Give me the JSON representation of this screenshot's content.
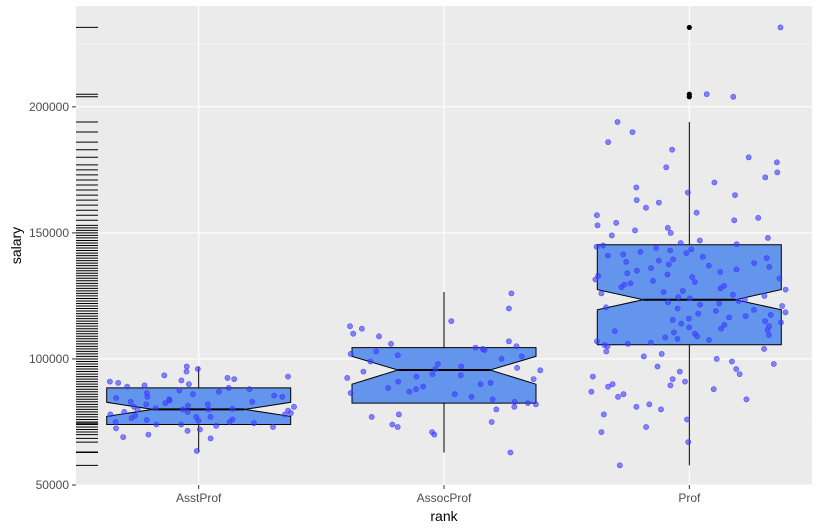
{
  "chart_data": {
    "type": "box",
    "title": "",
    "xlabel": "rank",
    "ylabel": "salary",
    "categories": [
      "AsstProf",
      "AssocProf",
      "Prof"
    ],
    "ylim": [
      50000,
      240000
    ],
    "y_ticks": [
      50000,
      100000,
      150000,
      200000
    ],
    "y_tick_labels": [
      "50000",
      "100000",
      "150000",
      "200000"
    ],
    "notched": true,
    "grid": true,
    "legend": "none",
    "colors": {
      "panel_background": "#ebebeb",
      "grid_major": "#ffffff",
      "grid_minor": "#f5f5f5",
      "box_fill": "#6495ed",
      "box_outline": "#000000",
      "points": "#3b3bff",
      "rug": "#000000"
    },
    "boxes": [
      {
        "category": "AsstProf",
        "lower_whisker": 63100,
        "q1": 74000,
        "median": 80000,
        "q3": 88500,
        "upper_whisker": 97000,
        "notch_low": 77200,
        "notch_high": 82800,
        "outliers": []
      },
      {
        "category": "AssocProf",
        "lower_whisker": 62900,
        "q1": 82500,
        "median": 95600,
        "q3": 104500,
        "upper_whisker": 126500,
        "notch_low": 90000,
        "notch_high": 101000,
        "outliers": []
      },
      {
        "category": "Prof",
        "lower_whisker": 57800,
        "q1": 105600,
        "median": 123500,
        "q3": 145300,
        "upper_whisker": 194000,
        "notch_low": 119500,
        "notch_high": 127500,
        "outliers": [
          204000,
          205000,
          231500
        ]
      }
    ],
    "jitter_points": {
      "AsstProf": [
        63500,
        68500,
        69000,
        70000,
        71500,
        72000,
        72500,
        73000,
        73500,
        74000,
        74000,
        74500,
        75000,
        75000,
        75500,
        75800,
        76000,
        76500,
        77000,
        77000,
        77500,
        78000,
        78000,
        78500,
        79000,
        79000,
        79500,
        79800,
        80000,
        80000,
        80200,
        80500,
        81000,
        81000,
        81500,
        82000,
        82000,
        82500,
        83000,
        83000,
        83500,
        84000,
        84500,
        85000,
        85000,
        85500,
        86000,
        86500,
        87000,
        87500,
        88000,
        88500,
        89000,
        89500,
        90000,
        90500,
        91000,
        91500,
        92000,
        92500,
        93000,
        93500,
        95000,
        96000,
        97000
      ],
      "AssocProf": [
        62900,
        70000,
        71000,
        73000,
        74000,
        75000,
        77000,
        78000,
        80000,
        81000,
        82000,
        82500,
        83000,
        84000,
        85000,
        86000,
        86500,
        87000,
        88000,
        88500,
        89000,
        90000,
        90500,
        91000,
        92000,
        92500,
        93000,
        93500,
        94000,
        95000,
        95500,
        96000,
        96500,
        97000,
        98000,
        99000,
        100000,
        101000,
        101500,
        102000,
        103000,
        103500,
        104000,
        104500,
        105000,
        106000,
        107000,
        109000,
        110000,
        112000,
        113000,
        115000,
        120000,
        126000
      ],
      "Prof": [
        57800,
        67000,
        71000,
        73000,
        76000,
        78000,
        80000,
        81000,
        82000,
        84000,
        85000,
        86000,
        87000,
        88000,
        89000,
        89500,
        90000,
        91000,
        92000,
        93000,
        94000,
        95000,
        96000,
        97000,
        98000,
        99000,
        100000,
        101000,
        102000,
        103000,
        104000,
        105000,
        105500,
        106000,
        106500,
        107000,
        107500,
        108000,
        108500,
        109000,
        109500,
        110000,
        110500,
        111000,
        111500,
        112000,
        112500,
        113000,
        113500,
        114000,
        114500,
        115000,
        115500,
        116000,
        116500,
        117000,
        117500,
        118000,
        118500,
        119000,
        119500,
        120000,
        120500,
        121000,
        121500,
        122000,
        122500,
        123000,
        123500,
        124000,
        124500,
        125000,
        125500,
        126000,
        126500,
        127000,
        127500,
        128000,
        128500,
        129000,
        129500,
        130000,
        130500,
        131000,
        131500,
        132000,
        132500,
        133000,
        133500,
        134000,
        134500,
        135000,
        135500,
        136000,
        136500,
        137000,
        137500,
        138000,
        138500,
        139000,
        139500,
        140000,
        140500,
        141000,
        141500,
        142000,
        142500,
        143000,
        143500,
        144000,
        144500,
        145000,
        145500,
        146000,
        147000,
        148000,
        149000,
        150000,
        151000,
        152000,
        153000,
        154000,
        155000,
        156000,
        157000,
        158000,
        160000,
        162000,
        163000,
        165000,
        166000,
        168000,
        170000,
        172000,
        174000,
        176000,
        178000,
        180000,
        183000,
        186000,
        190000,
        194000,
        204000,
        205000,
        231500
      ]
    },
    "rug_values": [
      57800,
      62900,
      63100,
      67000,
      68500,
      70000,
      71000,
      72000,
      73000,
      74000,
      74500,
      75000,
      76000,
      77000,
      78000,
      79000,
      80000,
      81000,
      82000,
      83000,
      84000,
      85000,
      86000,
      87000,
      88000,
      89000,
      90000,
      91000,
      92000,
      93000,
      94000,
      95000,
      96000,
      97000,
      98000,
      99000,
      100000,
      101000,
      102000,
      103000,
      104000,
      105000,
      106000,
      107000,
      108000,
      109000,
      110000,
      111000,
      112000,
      113000,
      114000,
      115000,
      116000,
      117000,
      118000,
      119000,
      120000,
      121000,
      122000,
      123000,
      124000,
      125000,
      126000,
      127000,
      128000,
      129000,
      130000,
      131000,
      132000,
      133000,
      134000,
      135000,
      136000,
      137000,
      138000,
      139000,
      140000,
      141000,
      142000,
      143000,
      144000,
      145000,
      146000,
      147000,
      148000,
      149000,
      150000,
      151000,
      152000,
      153000,
      155000,
      157000,
      159000,
      161000,
      163000,
      165000,
      167000,
      169000,
      171000,
      173000,
      175000,
      177000,
      180000,
      183000,
      186000,
      190000,
      194000,
      204000,
      205000,
      231500
    ]
  }
}
